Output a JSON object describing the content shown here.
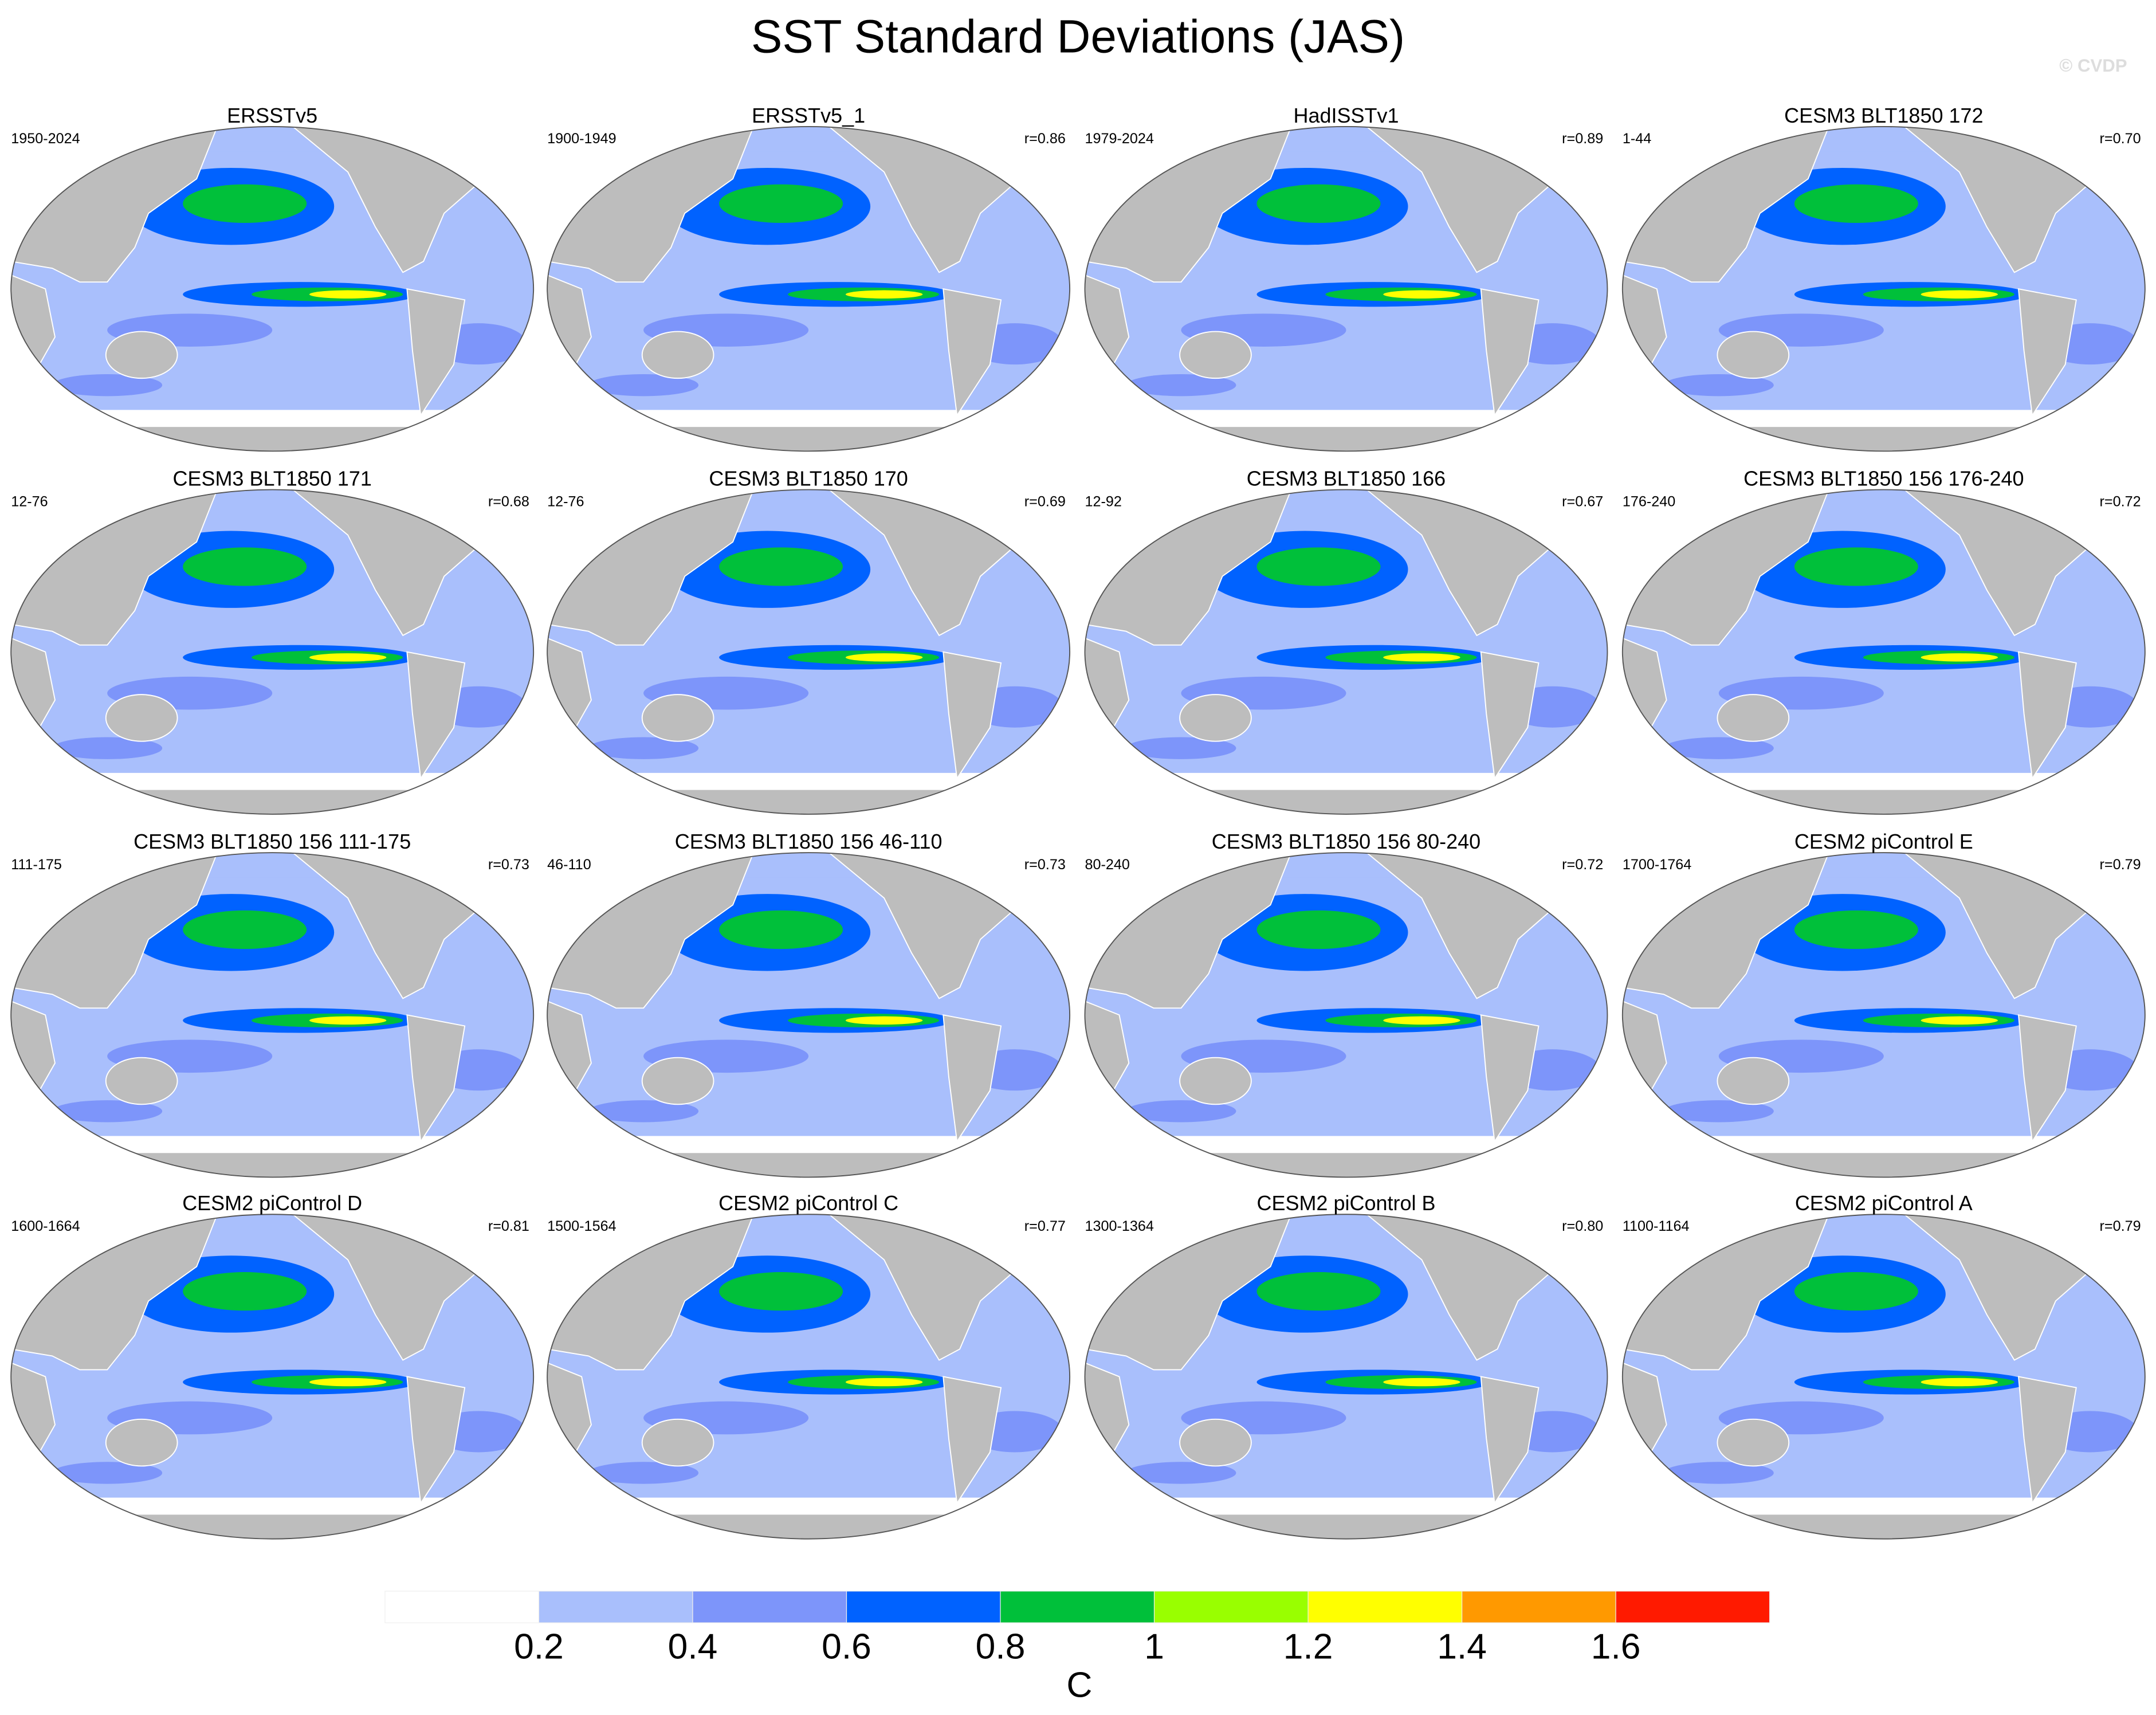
{
  "title": "SST Standard Deviations (JAS)",
  "watermark": "© CVDP",
  "panels": [
    {
      "title": "ERSSTv5",
      "period": "1950-2024",
      "r": null
    },
    {
      "title": "ERSSTv5_1",
      "period": "1900-1949",
      "r": "r=0.86"
    },
    {
      "title": "HadISSTv1",
      "period": "1979-2024",
      "r": "r=0.89"
    },
    {
      "title": "CESM3 BLT1850 172",
      "period": "1-44",
      "r": "r=0.70"
    },
    {
      "title": "CESM3 BLT1850 171",
      "period": "12-76",
      "r": "r=0.68"
    },
    {
      "title": "CESM3 BLT1850 170",
      "period": "12-76",
      "r": "r=0.69"
    },
    {
      "title": "CESM3 BLT1850 166",
      "period": "12-92",
      "r": "r=0.67"
    },
    {
      "title": "CESM3 BLT1850 156 176-240",
      "period": "176-240",
      "r": "r=0.72"
    },
    {
      "title": "CESM3 BLT1850 156 111-175",
      "period": "111-175",
      "r": "r=0.73"
    },
    {
      "title": "CESM3 BLT1850 156 46-110",
      "period": "46-110",
      "r": "r=0.73"
    },
    {
      "title": "CESM3 BLT1850 156 80-240",
      "period": "80-240",
      "r": "r=0.72"
    },
    {
      "title": "CESM2 piControl E",
      "period": "1700-1764",
      "r": "r=0.79"
    },
    {
      "title": "CESM2 piControl D",
      "period": "1600-1664",
      "r": "r=0.81"
    },
    {
      "title": "CESM2 piControl C",
      "period": "1500-1564",
      "r": "r=0.77"
    },
    {
      "title": "CESM2 piControl B",
      "period": "1300-1364",
      "r": "r=0.80"
    },
    {
      "title": "CESM2 piControl A",
      "period": "1100-1164",
      "r": "r=0.79"
    }
  ],
  "colorbar": {
    "ticks": [
      0.2,
      0.4,
      0.6,
      0.8,
      1,
      1.2,
      1.4,
      1.6
    ],
    "colors": [
      "#ffffff",
      "#a9bffc",
      "#7d95fa",
      "#0062ff",
      "#00c03a",
      "#99ff00",
      "#ffff00",
      "#ff9900",
      "#ff1a00"
    ],
    "label": "C"
  }
}
